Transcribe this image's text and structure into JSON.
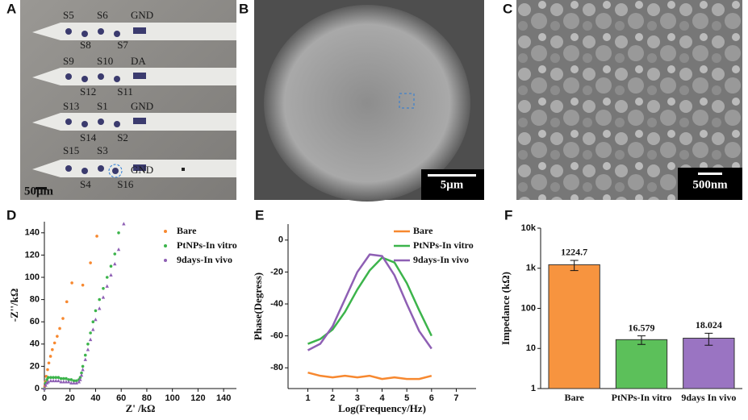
{
  "images": [
    {
      "panel": "A",
      "labels": [
        "S5",
        "S6",
        "GND",
        "S8",
        "S7",
        "S9",
        "S10",
        "DA",
        "S12",
        "S11",
        "S13",
        "S1",
        "GND",
        "S14",
        "S2",
        "S15",
        "S3",
        "GND",
        "S4",
        "S16"
      ],
      "scale_bar": "50μm"
    },
    {
      "panel": "B",
      "scale_bar": "5μm"
    },
    {
      "panel": "C",
      "scale_bar": "500nm"
    }
  ],
  "chart_data": [
    {
      "type": "scatter",
      "panel": "D",
      "x_label": "Z' /kΩ",
      "y_label": "-Z''/kΩ",
      "xlim": [
        0,
        150
      ],
      "xticks": [
        0,
        20,
        40,
        60,
        80,
        100,
        120,
        140
      ],
      "ylim": [
        0,
        150
      ],
      "yticks": [
        0,
        20,
        40,
        60,
        80,
        100,
        120,
        140
      ],
      "legend": "top-right",
      "series": [
        {
          "name": "Bare",
          "color": "#f7882f",
          "marker": "circle",
          "x": [
            0.3,
            0.8,
            1.5,
            2.5,
            3.5,
            4.8,
            6.2,
            8,
            10,
            12,
            14.5,
            17.5,
            21.5,
            30,
            36,
            41
          ],
          "values": [
            2,
            6,
            11,
            17,
            23,
            29,
            35,
            41,
            47,
            54,
            63,
            78,
            95,
            93,
            113,
            137
          ]
        },
        {
          "name": "PtNPs-In vitro",
          "color": "#3cb44b",
          "marker": "circle",
          "x": [
            0,
            1,
            2,
            3,
            5,
            7,
            9,
            11,
            13,
            15,
            17,
            19,
            21,
            23,
            25,
            27,
            28,
            29,
            30,
            32,
            34,
            36,
            38,
            40,
            43,
            46,
            49,
            52,
            55,
            58
          ],
          "values": [
            0,
            5,
            8,
            10,
            10,
            10,
            10,
            10,
            9,
            9,
            9,
            8,
            8,
            7,
            7,
            8,
            10,
            14,
            20,
            30,
            40,
            50,
            60,
            70,
            80,
            90,
            100,
            110,
            121,
            140
          ]
        },
        {
          "name": "9days-In vivo",
          "color": "#8e5fb4",
          "marker": "triangle",
          "x": [
            0,
            1,
            2,
            3,
            5,
            7,
            9,
            11,
            13,
            15,
            17,
            19,
            21,
            23,
            25,
            27,
            28,
            29,
            30,
            32,
            34,
            36,
            38,
            40,
            43,
            46,
            49,
            52,
            55,
            58,
            62
          ],
          "values": [
            0,
            3,
            5,
            6,
            7,
            7,
            7,
            7,
            6,
            6,
            6,
            6,
            5,
            5,
            5,
            6,
            8,
            12,
            17,
            26,
            35,
            44,
            53,
            62,
            72,
            82,
            92,
            102,
            112,
            125,
            148
          ]
        }
      ]
    },
    {
      "type": "line",
      "panel": "E",
      "x_label": "Log(Frequency/Hz)",
      "y_label": "Phase(Degress)",
      "xlim": [
        0.2,
        7.8
      ],
      "xticks": [
        1,
        2,
        3,
        4,
        5,
        6,
        7
      ],
      "ylim": [
        -93,
        10
      ],
      "yticks": [
        -80,
        -60,
        -40,
        -20,
        0
      ],
      "legend": "top-right",
      "x": [
        1,
        1.5,
        2,
        2.5,
        3,
        3.5,
        4,
        4.5,
        5,
        5.5,
        6
      ],
      "series": [
        {
          "name": "Bare",
          "color": "#f7882f",
          "values": [
            -83,
            -85,
            -86,
            -85,
            -86,
            -85,
            -87,
            -86,
            -87,
            -87,
            -85
          ]
        },
        {
          "name": "PtNPs-In vitro",
          "color": "#3cb44b",
          "values": [
            -65,
            -62,
            -56,
            -45,
            -31,
            -19,
            -11,
            -14,
            -27,
            -44,
            -60
          ]
        },
        {
          "name": "9days-In vivo",
          "color": "#8e5fb4",
          "values": [
            -69,
            -65,
            -54,
            -37,
            -20,
            -9,
            -10,
            -22,
            -40,
            -57,
            -68
          ]
        }
      ]
    },
    {
      "type": "bar",
      "panel": "F",
      "y_label": "Impedance (kΩ)",
      "log_scale": true,
      "ylim": [
        1,
        10000
      ],
      "yticks": [
        1,
        10,
        100,
        {
          "value": 1000,
          "label": "1k"
        },
        {
          "value": 10000,
          "label": "10k"
        }
      ],
      "categories": [
        "Bare",
        "PtNPs-In vitro",
        "9days In vivo"
      ],
      "values": [
        1224.7,
        16.579,
        18.024
      ],
      "errors": [
        350,
        4,
        6
      ],
      "colors": [
        "#f7943f",
        "#5cc05a",
        "#9a74c2"
      ]
    }
  ]
}
